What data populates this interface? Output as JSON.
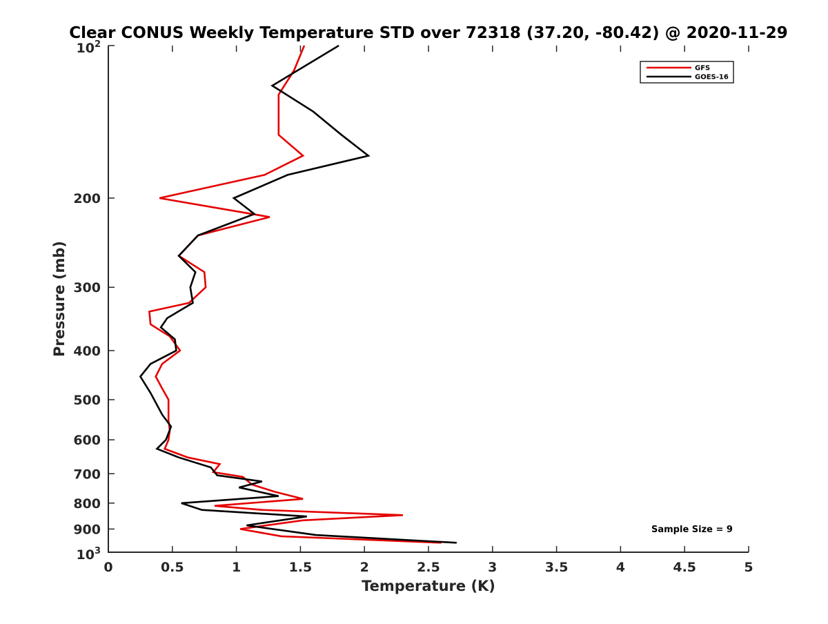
{
  "chart_data": {
    "type": "line",
    "title": "Clear CONUS Weekly Temperature STD over 72318 (37.20, -80.42) @ 2020-11-29",
    "xlabel": "Temperature (K)",
    "ylabel": "Pressure (mb)",
    "xlim": [
      0,
      5
    ],
    "ylim": [
      100,
      1000
    ],
    "y_scale": "log",
    "y_reversed": true,
    "x_ticks": [
      "0",
      "0.5",
      "1",
      "1.5",
      "2",
      "2.5",
      "3",
      "3.5",
      "4",
      "4.5",
      "5"
    ],
    "x_tick_values": [
      0,
      0.5,
      1,
      1.5,
      2,
      2.5,
      3,
      3.5,
      4,
      4.5,
      5
    ],
    "y_ticks": [
      {
        "value": 100,
        "base": "10",
        "exp": "2"
      },
      {
        "value": 200,
        "label": "200"
      },
      {
        "value": 300,
        "label": "300"
      },
      {
        "value": 400,
        "label": "400"
      },
      {
        "value": 500,
        "label": "500"
      },
      {
        "value": 600,
        "label": "600"
      },
      {
        "value": 700,
        "label": "700"
      },
      {
        "value": 800,
        "label": "800"
      },
      {
        "value": 900,
        "label": "900"
      },
      {
        "value": 1000,
        "base": "10",
        "exp": "3"
      }
    ],
    "grid": false,
    "legend_position": "top-right",
    "series": [
      {
        "name": "GFS",
        "color": "#e50000",
        "points": [
          [
            1.53,
            100
          ],
          [
            1.45,
            112
          ],
          [
            1.33,
            125
          ],
          [
            1.33,
            150
          ],
          [
            1.52,
            165
          ],
          [
            1.22,
            180
          ],
          [
            0.4,
            200
          ],
          [
            1.26,
            218
          ],
          [
            0.7,
            237
          ],
          [
            0.55,
            260
          ],
          [
            0.75,
            280
          ],
          [
            0.76,
            300
          ],
          [
            0.63,
            322
          ],
          [
            0.32,
            335
          ],
          [
            0.33,
            355
          ],
          [
            0.48,
            375
          ],
          [
            0.56,
            400
          ],
          [
            0.42,
            425
          ],
          [
            0.37,
            450
          ],
          [
            0.42,
            475
          ],
          [
            0.47,
            500
          ],
          [
            0.47,
            525
          ],
          [
            0.47,
            550
          ],
          [
            0.48,
            575
          ],
          [
            0.47,
            600
          ],
          [
            0.44,
            625
          ],
          [
            0.62,
            650
          ],
          [
            0.87,
            670
          ],
          [
            0.82,
            695
          ],
          [
            1.05,
            710
          ],
          [
            1.12,
            735
          ],
          [
            1.3,
            760
          ],
          [
            1.52,
            785
          ],
          [
            0.83,
            810
          ],
          [
            1.2,
            825
          ],
          [
            2.3,
            845
          ],
          [
            1.52,
            865
          ],
          [
            1.03,
            900
          ],
          [
            1.35,
            930
          ],
          [
            2.6,
            958
          ]
        ]
      },
      {
        "name": "GOES-16",
        "color": "#000000",
        "points": [
          [
            1.8,
            100
          ],
          [
            1.28,
            120
          ],
          [
            1.6,
            135
          ],
          [
            1.82,
            150
          ],
          [
            2.03,
            165
          ],
          [
            1.4,
            180
          ],
          [
            0.98,
            200
          ],
          [
            1.14,
            215
          ],
          [
            0.7,
            237
          ],
          [
            0.55,
            260
          ],
          [
            0.68,
            280
          ],
          [
            0.64,
            300
          ],
          [
            0.66,
            322
          ],
          [
            0.46,
            345
          ],
          [
            0.41,
            360
          ],
          [
            0.52,
            380
          ],
          [
            0.53,
            400
          ],
          [
            0.33,
            425
          ],
          [
            0.25,
            450
          ],
          [
            0.33,
            485
          ],
          [
            0.42,
            535
          ],
          [
            0.49,
            565
          ],
          [
            0.45,
            600
          ],
          [
            0.38,
            625
          ],
          [
            0.55,
            650
          ],
          [
            0.8,
            680
          ],
          [
            0.85,
            705
          ],
          [
            1.2,
            725
          ],
          [
            1.02,
            745
          ],
          [
            1.33,
            775
          ],
          [
            0.57,
            800
          ],
          [
            0.73,
            825
          ],
          [
            1.55,
            850
          ],
          [
            1.08,
            885
          ],
          [
            1.62,
            925
          ],
          [
            2.72,
            958
          ]
        ]
      }
    ],
    "annotations": [
      {
        "text": "Sample Size = 9",
        "x": 4.3,
        "y": 895
      }
    ]
  }
}
